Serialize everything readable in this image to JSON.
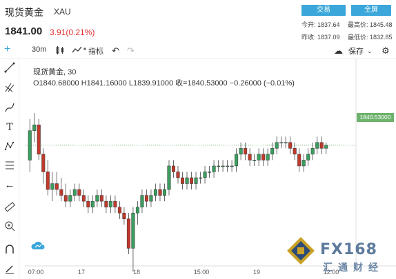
{
  "header": {
    "title": "现货黄金",
    "code": "XAU",
    "price": "1841.00",
    "change": "3.91(0.21%)",
    "trade_btn": "交易",
    "full_btn": "全屏",
    "open_label": "今开: 1837.64",
    "high_label": "最高价: 1845.48",
    "prev_label": "昨收: 1837.09",
    "low_label": "最低价: 1832.85"
  },
  "toolbar": {
    "interval": "30m",
    "indicators": "指标",
    "save": "保存"
  },
  "chart_info": {
    "symbol": "现货黄金, 30",
    "ohlc": "O1840.68000  H1841.16000  L1839.91000  收=1840.53000  −0.26000 (−0.01%)",
    "last_price": "1840.53000"
  },
  "watermark": {
    "brand": "FX168",
    "sub": "汇通财经"
  },
  "colors": {
    "up": "#3a9e5f",
    "down": "#c0392b",
    "accent": "#3aa6d9"
  },
  "chart_data": {
    "type": "candlestick",
    "x_ticks": [
      "07:00",
      "17",
      "18",
      "15:00",
      "19",
      "12:00"
    ],
    "last": 1840.53,
    "ylim": [
      1820,
      1850
    ],
    "candles": [
      [
        1838,
        1845,
        1836,
        1843
      ],
      [
        1843,
        1846,
        1841,
        1844
      ],
      [
        1844,
        1845,
        1838,
        1839
      ],
      [
        1839,
        1840,
        1834,
        1836
      ],
      [
        1836,
        1838,
        1832,
        1833
      ],
      [
        1833,
        1836,
        1831,
        1834
      ],
      [
        1834,
        1836,
        1832,
        1833
      ],
      [
        1833,
        1835,
        1831,
        1832
      ],
      [
        1832,
        1834,
        1830,
        1831
      ],
      [
        1831,
        1833,
        1830,
        1832
      ],
      [
        1832,
        1834,
        1831,
        1833
      ],
      [
        1833,
        1834,
        1831,
        1832
      ],
      [
        1832,
        1833,
        1830,
        1831
      ],
      [
        1831,
        1832,
        1829,
        1830
      ],
      [
        1830,
        1832,
        1829,
        1831
      ],
      [
        1831,
        1833,
        1830,
        1832
      ],
      [
        1832,
        1833,
        1830,
        1831
      ],
      [
        1831,
        1832,
        1829,
        1830
      ],
      [
        1830,
        1832,
        1829,
        1831
      ],
      [
        1831,
        1832,
        1829,
        1830
      ],
      [
        1830,
        1831,
        1828,
        1829
      ],
      [
        1829,
        1830,
        1827,
        1828
      ],
      [
        1828,
        1829,
        1822,
        1823
      ],
      [
        1823,
        1830,
        1819,
        1829
      ],
      [
        1829,
        1831,
        1827,
        1830
      ],
      [
        1830,
        1833,
        1829,
        1832
      ],
      [
        1832,
        1833,
        1830,
        1831
      ],
      [
        1831,
        1833,
        1830,
        1832
      ],
      [
        1832,
        1834,
        1831,
        1833
      ],
      [
        1833,
        1834,
        1831,
        1832
      ],
      [
        1832,
        1834,
        1831,
        1833
      ],
      [
        1833,
        1838,
        1832,
        1837
      ],
      [
        1837,
        1838,
        1835,
        1836
      ],
      [
        1836,
        1837,
        1834,
        1835
      ],
      [
        1835,
        1836,
        1833,
        1834
      ],
      [
        1834,
        1836,
        1833,
        1835
      ],
      [
        1835,
        1836,
        1833,
        1834
      ],
      [
        1834,
        1836,
        1833,
        1835
      ],
      [
        1835,
        1836,
        1834,
        1835
      ],
      [
        1835,
        1837,
        1834,
        1836
      ],
      [
        1836,
        1837,
        1835,
        1836
      ],
      [
        1836,
        1838,
        1835,
        1837
      ],
      [
        1837,
        1838,
        1836,
        1837
      ],
      [
        1837,
        1838,
        1836,
        1837
      ],
      [
        1837,
        1838,
        1836,
        1837
      ],
      [
        1837,
        1838,
        1836,
        1837
      ],
      [
        1837,
        1840,
        1836,
        1839
      ],
      [
        1839,
        1841,
        1838,
        1840
      ],
      [
        1840,
        1841,
        1838,
        1839
      ],
      [
        1839,
        1840,
        1837,
        1838
      ],
      [
        1838,
        1839,
        1837,
        1838
      ],
      [
        1838,
        1840,
        1837,
        1839
      ],
      [
        1839,
        1840,
        1837,
        1838
      ],
      [
        1838,
        1840,
        1837,
        1839
      ],
      [
        1839,
        1841,
        1838,
        1840
      ],
      [
        1840,
        1842,
        1839,
        1841
      ],
      [
        1841,
        1842,
        1840,
        1841
      ],
      [
        1841,
        1842,
        1840,
        1841
      ],
      [
        1841,
        1842,
        1839,
        1840
      ],
      [
        1840,
        1841,
        1838,
        1839
      ],
      [
        1839,
        1840,
        1836,
        1837
      ],
      [
        1837,
        1839,
        1836,
        1838
      ],
      [
        1838,
        1840,
        1837,
        1839
      ],
      [
        1839,
        1841,
        1838,
        1840
      ],
      [
        1840,
        1842,
        1839,
        1841
      ],
      [
        1841,
        1842,
        1839,
        1840
      ],
      [
        1840,
        1841,
        1839,
        1840.53
      ]
    ]
  }
}
